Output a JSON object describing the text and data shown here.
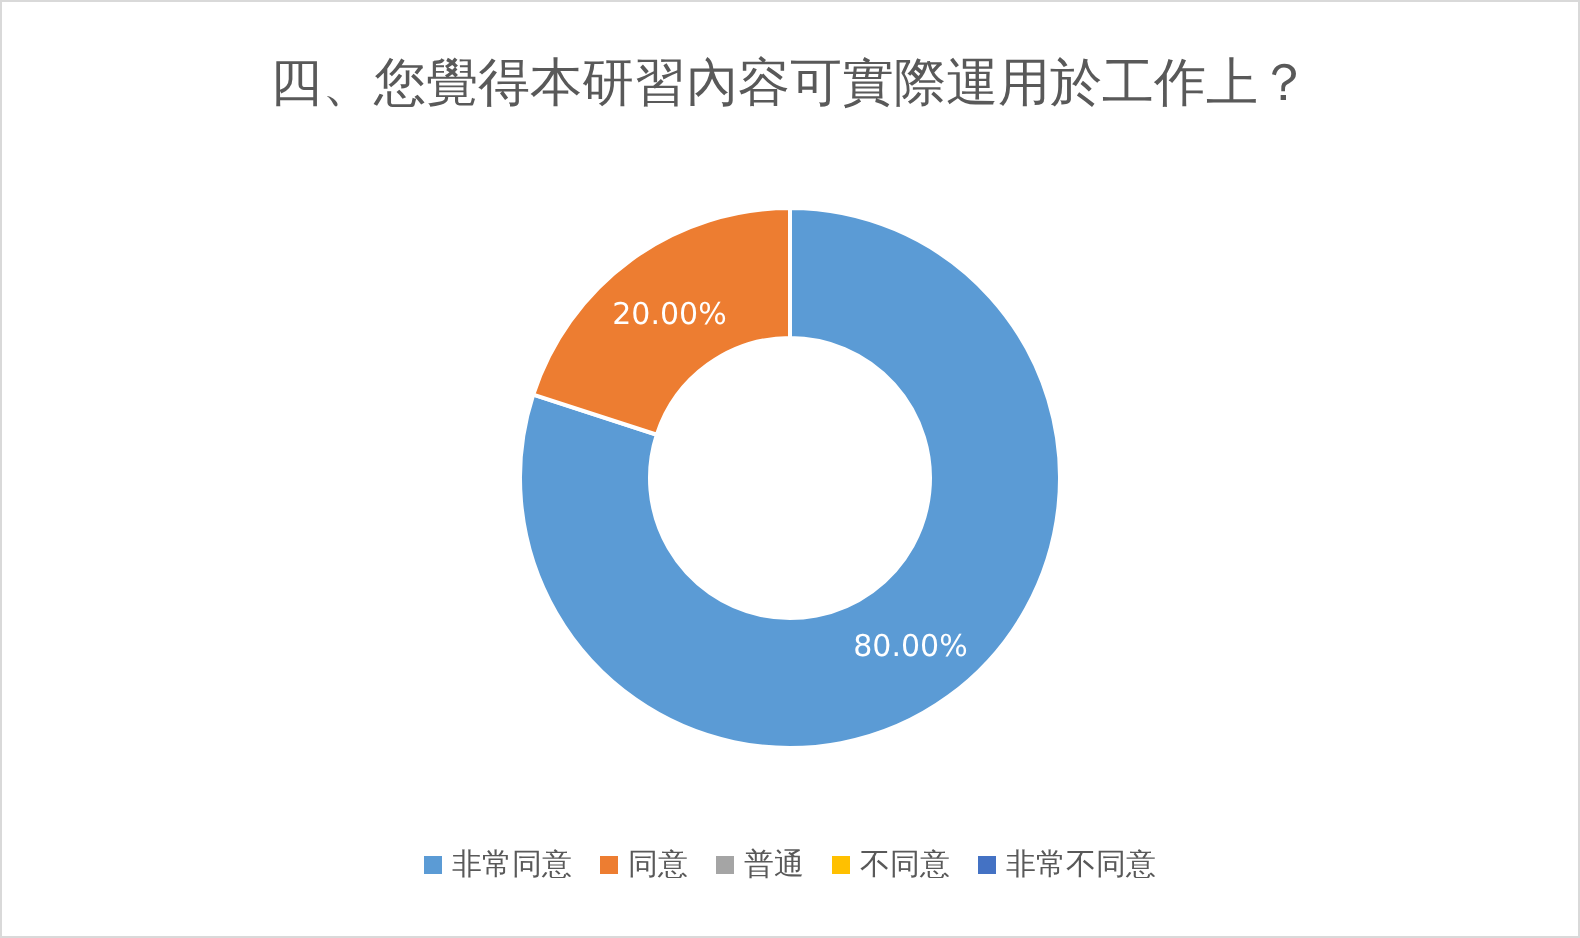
{
  "chart_data": {
    "type": "donut",
    "title": "四、您覺得本研習內容可實際運用於工作上？",
    "categories": [
      "非常同意",
      "同意",
      "普通",
      "不同意",
      "非常不同意"
    ],
    "values": [
      80,
      20,
      0,
      0,
      0
    ],
    "colors": [
      "#5b9bd5",
      "#ed7d31",
      "#a5a5a5",
      "#ffc000",
      "#4472c4"
    ],
    "value_labels": [
      "80.00%",
      "20.00%",
      null,
      null,
      null
    ],
    "legend": "bottom"
  }
}
